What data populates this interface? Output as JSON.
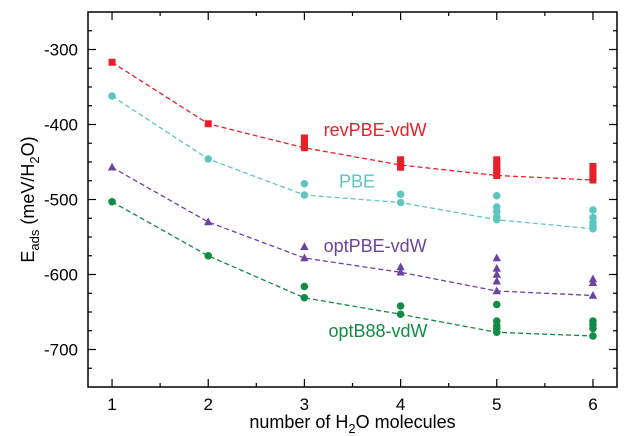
{
  "chart_data": {
    "type": "scatter",
    "xlabel": {
      "pre": "number of H",
      "sub": "2",
      "post": "O molecules"
    },
    "ylabel": {
      "main": "E",
      "main_sub": "ads",
      "pre": " (meV/H",
      "sub": "2",
      "post": "O)"
    },
    "xlim": [
      0.75,
      6.25
    ],
    "ylim": [
      -750,
      -250
    ],
    "xticks": [
      "1",
      "2",
      "3",
      "4",
      "5",
      "6"
    ],
    "xtick_values": [
      1,
      2,
      3,
      4,
      5,
      6
    ],
    "yticks": [
      "-300",
      "-400",
      "-500",
      "-600",
      "-700"
    ],
    "ytick_values": [
      -300,
      -400,
      -500,
      -600,
      -700
    ],
    "grid": false,
    "series": [
      {
        "name": "revPBE-vdW",
        "color": "#e8202a",
        "marker": "square",
        "line_x": [
          1,
          2,
          3,
          4,
          5,
          6
        ],
        "line_y": [
          -317,
          -399,
          -431,
          -454,
          -468,
          -474
        ],
        "points": [
          [
            1,
            -317
          ],
          [
            2,
            -399
          ],
          [
            3,
            -418
          ],
          [
            3,
            -423
          ],
          [
            3,
            -428
          ],
          [
            3,
            -431
          ],
          [
            4,
            -447
          ],
          [
            4,
            -451
          ],
          [
            4,
            -454
          ],
          [
            4,
            -457
          ],
          [
            5,
            -447
          ],
          [
            5,
            -451
          ],
          [
            5,
            -455
          ],
          [
            5,
            -459
          ],
          [
            5,
            -463
          ],
          [
            5,
            -468
          ],
          [
            6,
            -456
          ],
          [
            6,
            -460
          ],
          [
            6,
            -464
          ],
          [
            6,
            -468
          ],
          [
            6,
            -471
          ],
          [
            6,
            -474
          ]
        ]
      },
      {
        "name": "PBE",
        "color": "#5ec5c0",
        "marker": "circle",
        "line_x": [
          1,
          2,
          3,
          4,
          5,
          6
        ],
        "line_y": [
          -362,
          -446,
          -494,
          -504,
          -527,
          -539
        ],
        "points": [
          [
            1,
            -362
          ],
          [
            2,
            -446
          ],
          [
            3,
            -479
          ],
          [
            3,
            -494
          ],
          [
            4,
            -493
          ],
          [
            4,
            -504
          ],
          [
            5,
            -495
          ],
          [
            5,
            -510
          ],
          [
            5,
            -516
          ],
          [
            5,
            -523
          ],
          [
            5,
            -527
          ],
          [
            6,
            -514
          ],
          [
            6,
            -524
          ],
          [
            6,
            -530
          ],
          [
            6,
            -535
          ],
          [
            6,
            -539
          ]
        ]
      },
      {
        "name": "optPBE-vdW",
        "color": "#6a44a0",
        "marker": "triangle",
        "line_x": [
          1,
          2,
          3,
          4,
          5,
          6
        ],
        "line_y": [
          -457,
          -530,
          -578,
          -597,
          -622,
          -628
        ],
        "points": [
          [
            1,
            -457
          ],
          [
            2,
            -530
          ],
          [
            3,
            -563
          ],
          [
            3,
            -578
          ],
          [
            4,
            -590
          ],
          [
            4,
            -597
          ],
          [
            5,
            -578
          ],
          [
            5,
            -592
          ],
          [
            5,
            -600
          ],
          [
            5,
            -609
          ],
          [
            5,
            -622
          ],
          [
            6,
            -606
          ],
          [
            6,
            -611
          ],
          [
            6,
            -628
          ]
        ]
      },
      {
        "name": "optB88-vdW",
        "color": "#138a46",
        "marker": "circle",
        "line_x": [
          1,
          2,
          3,
          4,
          5,
          6
        ],
        "line_y": [
          -503,
          -575,
          -631,
          -653,
          -677,
          -682
        ],
        "points": [
          [
            1,
            -503
          ],
          [
            2,
            -575
          ],
          [
            3,
            -616
          ],
          [
            3,
            -631
          ],
          [
            4,
            -642
          ],
          [
            4,
            -653
          ],
          [
            5,
            -640
          ],
          [
            5,
            -662
          ],
          [
            5,
            -668
          ],
          [
            5,
            -672
          ],
          [
            5,
            -677
          ],
          [
            6,
            -662
          ],
          [
            6,
            -667
          ],
          [
            6,
            -672
          ],
          [
            6,
            -682
          ]
        ]
      }
    ],
    "annotations": [
      {
        "series": "revPBE-vdW",
        "text": "revPBE-vdW",
        "x": 3.2,
        "y": -415
      },
      {
        "series": "PBE",
        "text": "PBE",
        "x": 3.36,
        "y": -484
      },
      {
        "series": "optPBE-vdW",
        "text": "optPBE-vdW",
        "x": 3.2,
        "y": -570
      },
      {
        "series": "optB88-vdW",
        "text": "optB88-vdW",
        "x": 3.25,
        "y": -683
      }
    ]
  }
}
